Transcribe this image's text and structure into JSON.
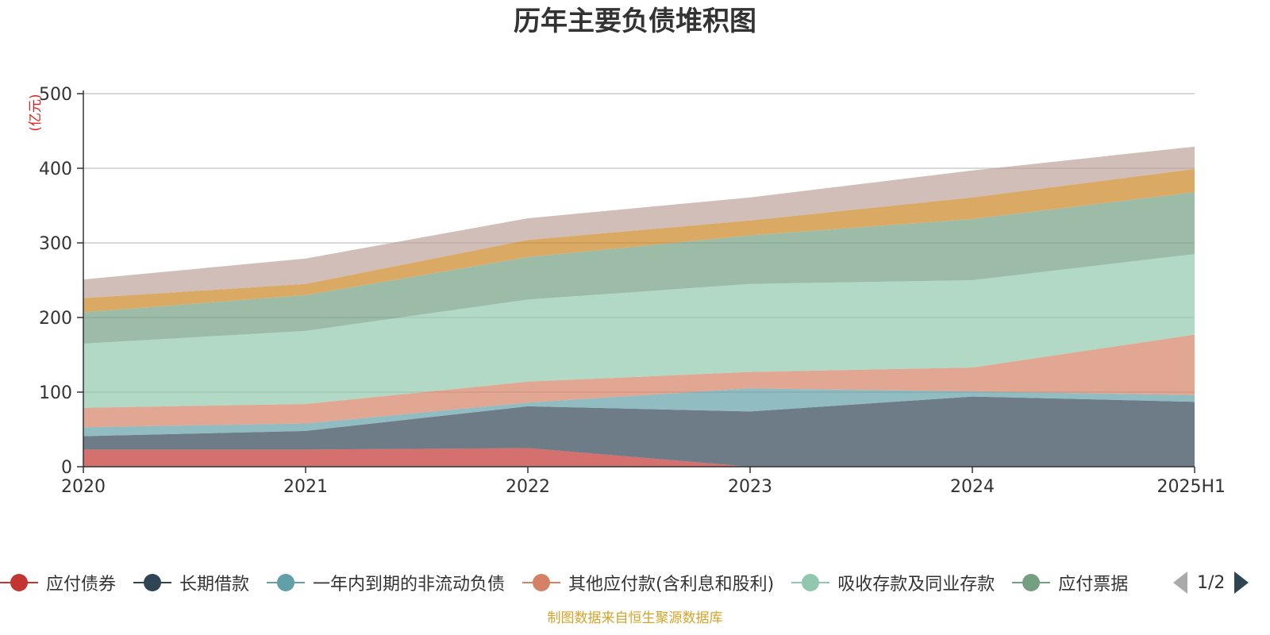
{
  "chart_data": {
    "type": "area",
    "stacked": true,
    "title": "历年主要负债堆积图",
    "ylabel": "(亿元)",
    "categories": [
      "2020",
      "2021",
      "2022",
      "2023",
      "2024",
      "2025H1"
    ],
    "ylim": [
      0,
      500
    ],
    "yticks": [
      "0",
      "100",
      "200",
      "300",
      "400",
      "500"
    ],
    "grid": true,
    "legend_position": "bottom",
    "series": [
      {
        "name": "应付债券",
        "color": "#c23531",
        "values": [
          23,
          23,
          25,
          0,
          0,
          0
        ]
      },
      {
        "name": "长期借款",
        "color": "#2f4554",
        "values": [
          18,
          25,
          56,
          74,
          94,
          87
        ]
      },
      {
        "name": "一年内到期的非流动负债",
        "color": "#61a0a8",
        "values": [
          12,
          10,
          5,
          31,
          7,
          9
        ]
      },
      {
        "name": "其他应付款(含利息和股利)",
        "color": "#d48265",
        "values": [
          26,
          26,
          28,
          22,
          32,
          81
        ]
      },
      {
        "name": "吸收存款及同业存款",
        "color": "#91c7ae",
        "values": [
          86,
          98,
          110,
          118,
          117,
          108
        ]
      },
      {
        "name": "应付票据",
        "color": "#749f83",
        "values": [
          42,
          48,
          57,
          65,
          82,
          83
        ]
      },
      {
        "name": "",
        "color": "#ca8622",
        "values": [
          19,
          15,
          23,
          20,
          29,
          31
        ]
      },
      {
        "name": "",
        "color": "#bda29a",
        "values": [
          25,
          34,
          29,
          31,
          36,
          30
        ]
      }
    ]
  },
  "legend": {
    "items": [
      "应付债券",
      "长期借款",
      "一年内到期的非流动负债",
      "其他应付款(含利息和股利)",
      "吸收存款及同业存款",
      "应付票据"
    ],
    "page_indicator": "1/2"
  },
  "source": "制图数据来自恒生聚源数据库"
}
